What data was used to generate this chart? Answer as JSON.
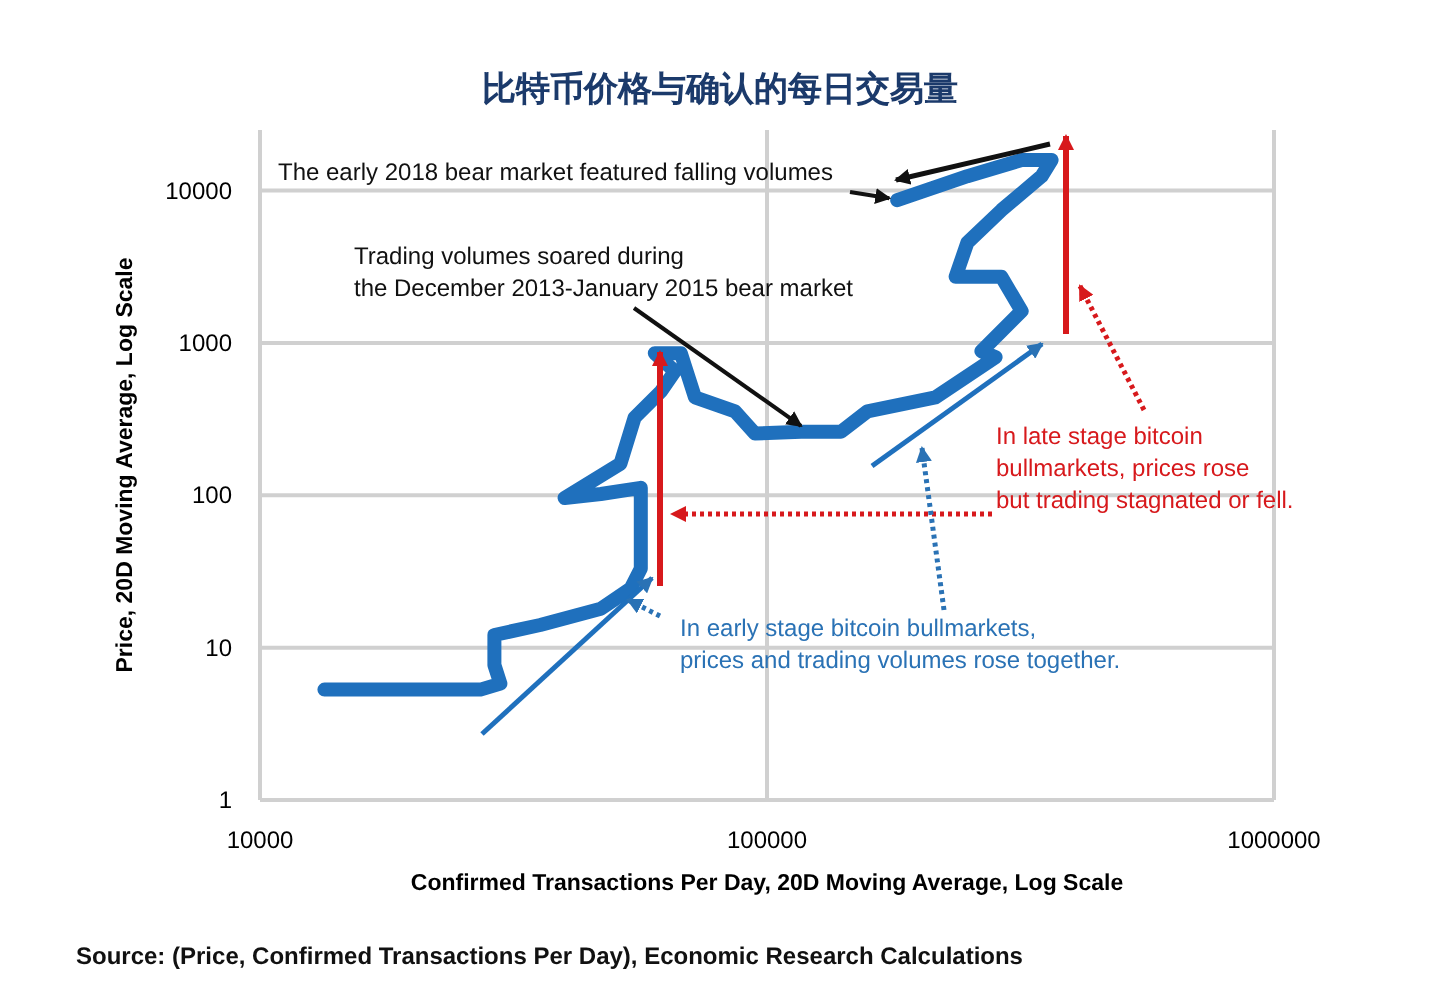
{
  "chart_data": {
    "type": "line",
    "title": "比特币价格与确认的每日交易量",
    "xlabel": "Confirmed Transactions Per Day, 20D Moving Average, Log Scale",
    "ylabel": "Price, 20D Moving Average, Log Scale",
    "log": "xy",
    "grid": true,
    "xlim": [
      10000,
      1000000
    ],
    "ylim": [
      1,
      25000
    ],
    "xticks": [
      10000,
      100000,
      1000000
    ],
    "yticks": [
      1,
      10,
      100,
      1000,
      10000
    ],
    "series": [
      {
        "color": "#1f70bd",
        "x": [
          13400,
          18900,
          27200,
          29800,
          29000,
          29000,
          35700,
          47000,
          53800,
          56400,
          56400,
          56400,
          47000,
          39900,
          51400,
          54800,
          61800,
          65800,
          60100,
          67600,
          72100,
          86500,
          94700,
          116700,
          140000,
          157700,
          214800,
          282300,
          264800,
          317700,
          289900,
          235500,
          248500,
          289900,
          348100,
          364300,
          317700,
          248500,
          180700
        ],
        "values": [
          5.3,
          5.3,
          5.3,
          5.8,
          7.7,
          12.1,
          14.1,
          18,
          24.4,
          33,
          71,
          112,
          102,
          96,
          161,
          324,
          481,
          652,
          857,
          857,
          439,
          355,
          254,
          261,
          261,
          355,
          439,
          806,
          883,
          1622,
          2720,
          2720,
          4560,
          7430,
          12450,
          15900,
          15900,
          12450,
          8640
        ]
      }
    ],
    "annotations": [
      {
        "text": "The early 2018 bear market featured falling volumes",
        "x": 180700,
        "y": 8640
      },
      {
        "text": "Trading volumes soared during\nthe December 2013-January 2015 bear market",
        "x": 116700,
        "y": 261
      },
      "In late stage bitcoin\nbullmarkets, prices rose\nbut trading stagnated or fell.",
      "In early stage bitcoin bullmarkets,\nprices and trading volumes rose together.",
      "Source: (Price, Confirmed Transactions Per Day), Economic Research Calculations"
    ]
  }
}
